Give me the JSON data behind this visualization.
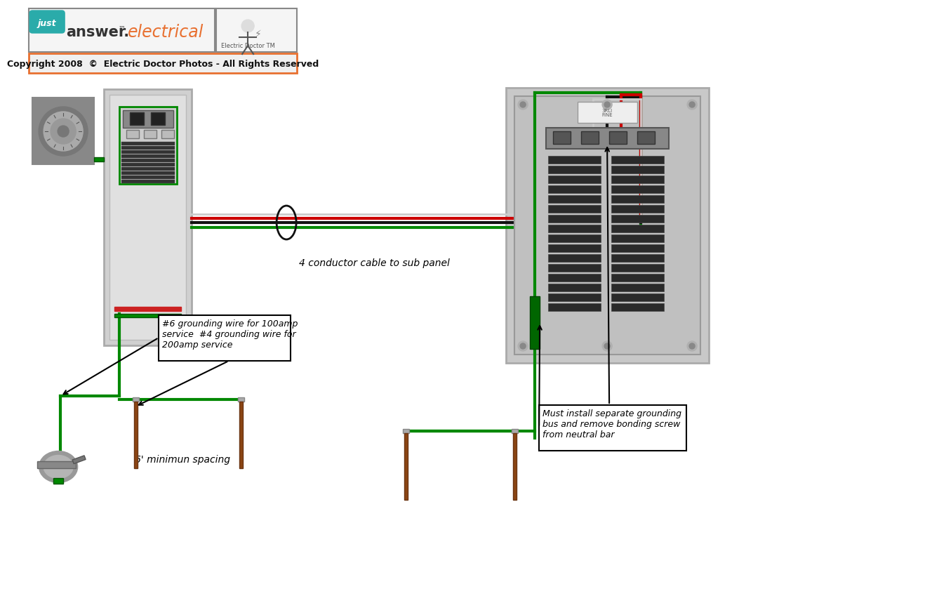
{
  "bg_color": "#ffffff",
  "copyright_border": "#e87030",
  "copyright_text": "Copyright 2008  ©  Electric Doctor Photos - All Rights Reserved",
  "annotation1": "4 conductor cable to sub panel",
  "annotation2": "#6 grounding wire for 100amp\nservice  #4 grounding wire for\n200amp service",
  "annotation3": "6' minimun spacing",
  "annotation4": "Must install separate grounding\nbus and remove bonding screw\nfrom neutral bar",
  "wire_green": "#008800",
  "wire_red": "#cc0000",
  "wire_black": "#111111",
  "wire_white": "#cccccc",
  "ground_rod_color": "#8B4513"
}
